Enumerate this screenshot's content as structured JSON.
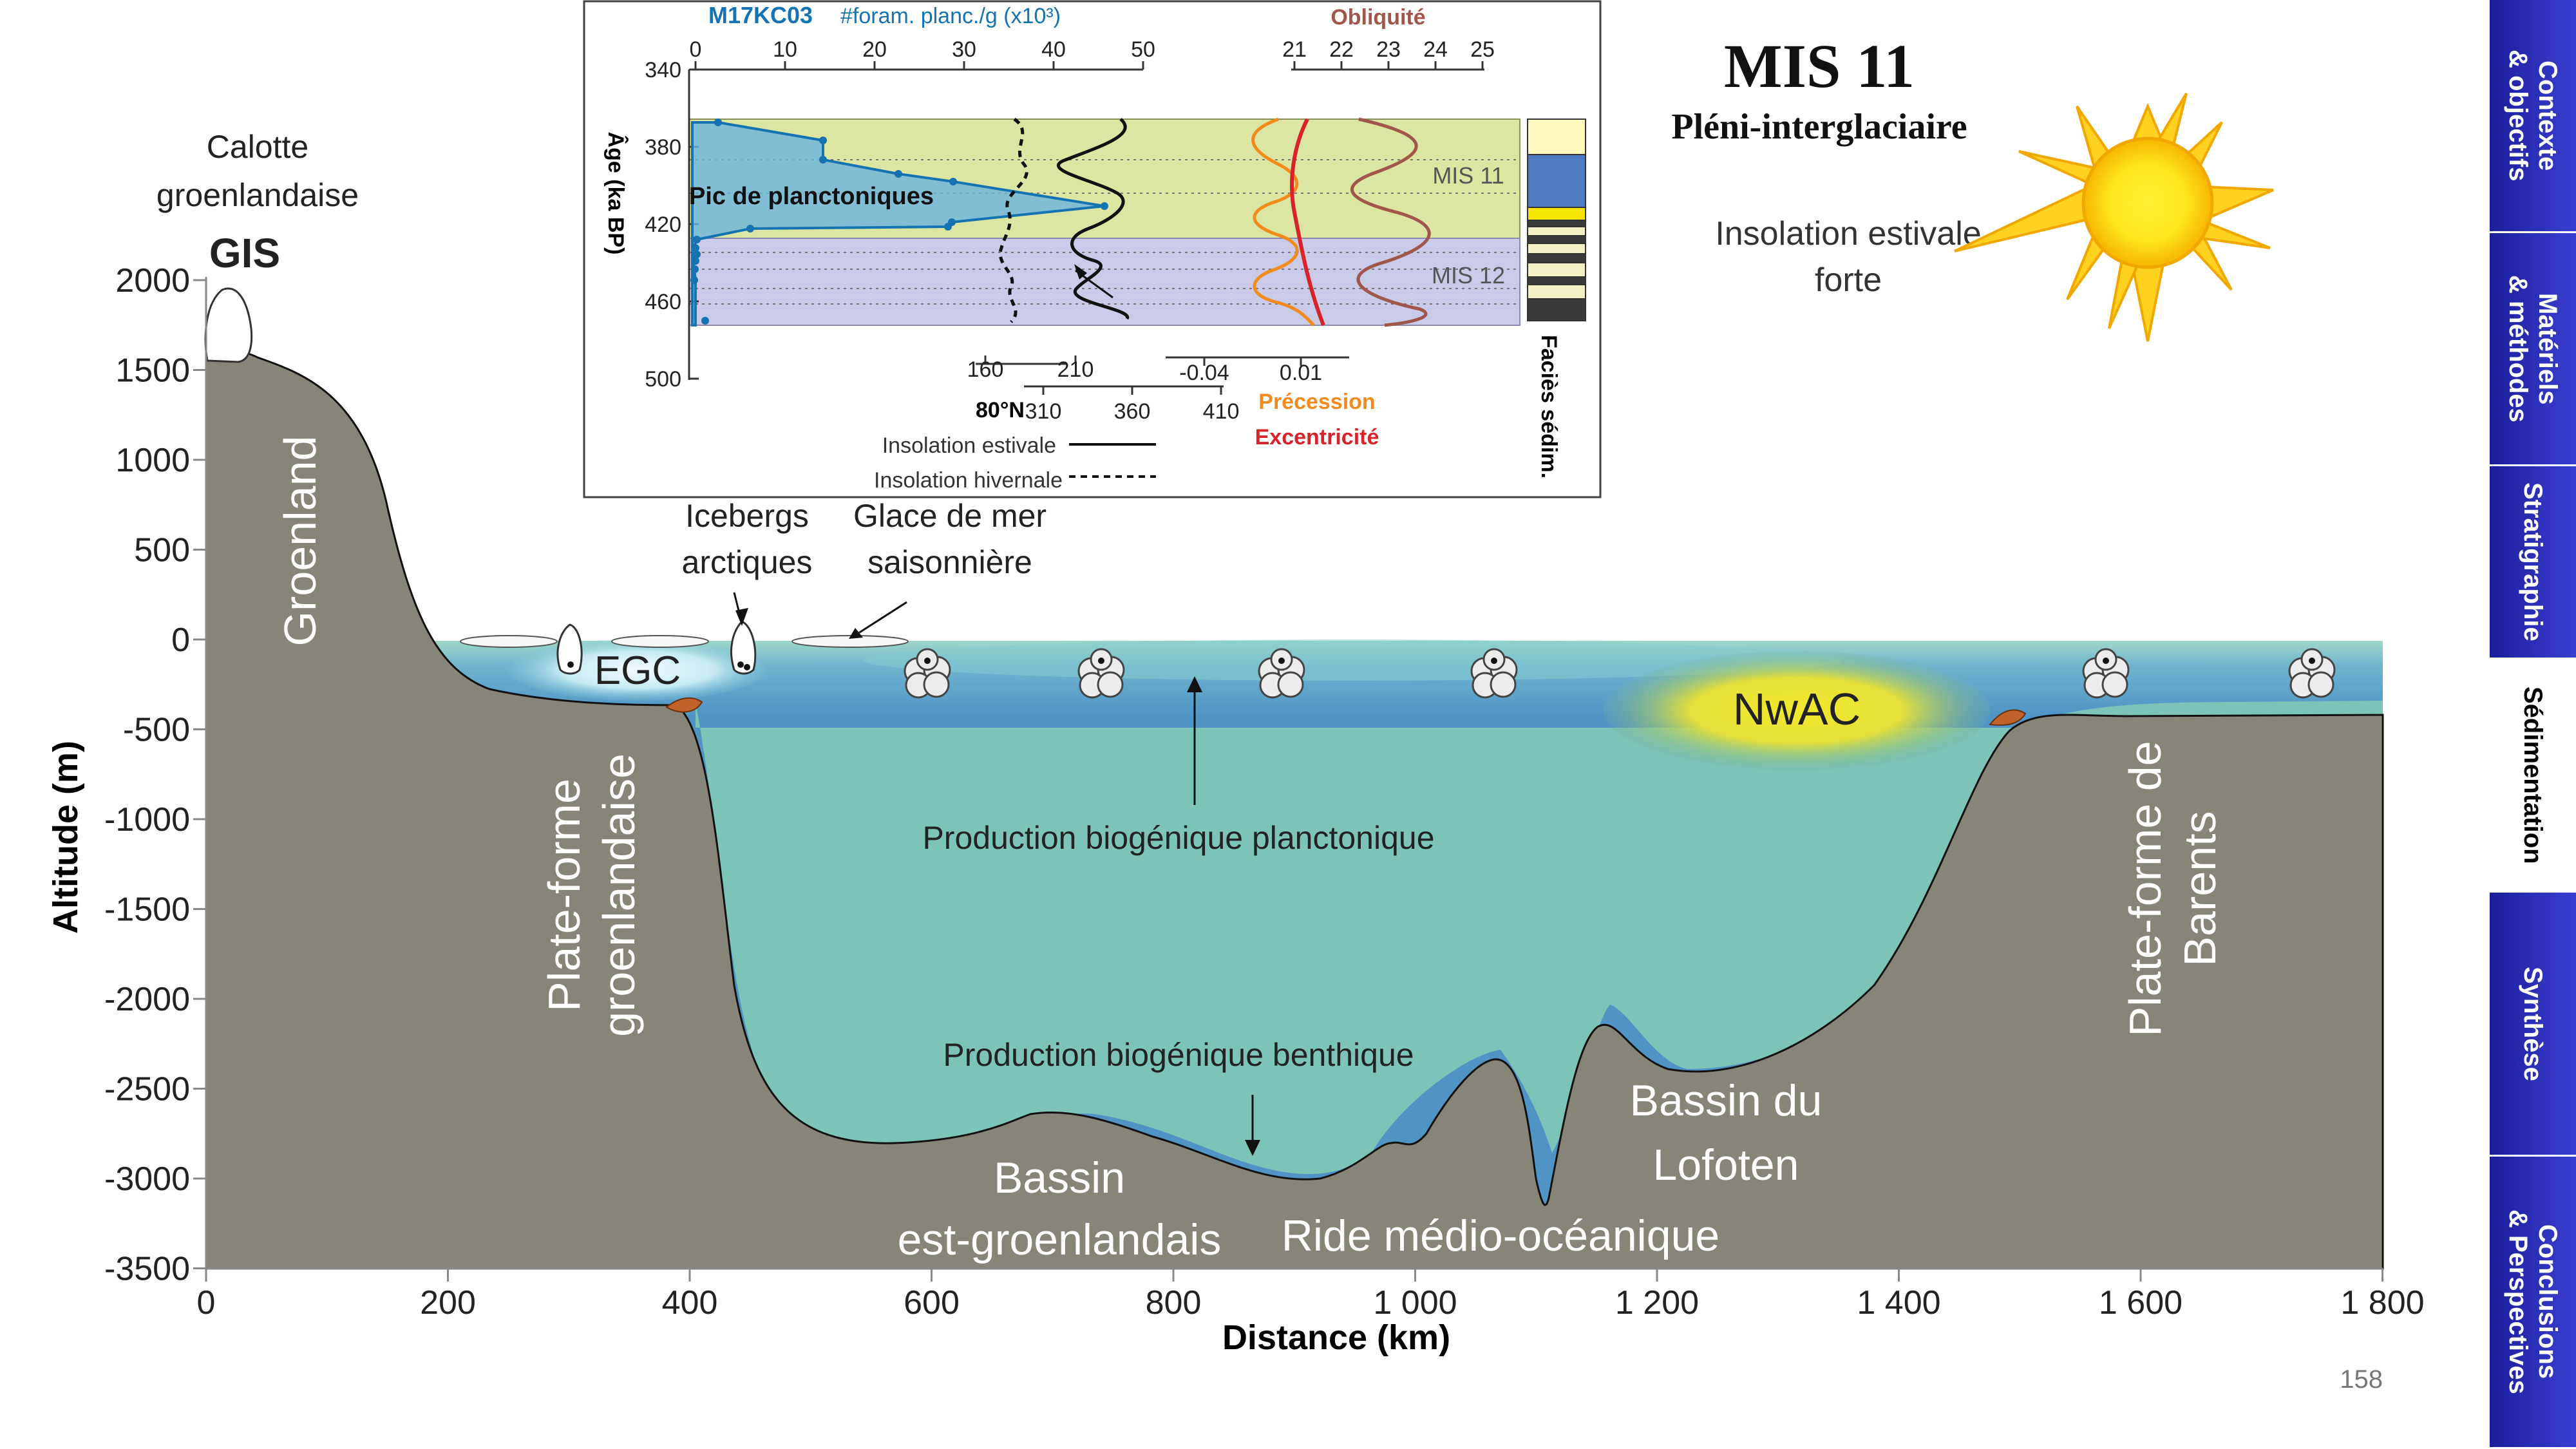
{
  "nav": {
    "items": [
      {
        "label": "Contexte\n& objectifs",
        "active": false
      },
      {
        "label": "Matériels\n& méthodes",
        "active": false
      },
      {
        "label": "Stratigraphie",
        "active": false
      },
      {
        "label": "Sédimentation",
        "active": true
      },
      {
        "label": "Synthèse",
        "active": false
      },
      {
        "label": "Conclusions\n& Perspectives",
        "active": false
      }
    ],
    "color_inactive": "#2a2cb5",
    "color_active": "#ffffff"
  },
  "header": {
    "title": "MIS 11",
    "subtitle": "Pléni-interglaciaire",
    "insolation_label_1": "Insolation estivale",
    "insolation_label_2": "forte",
    "sun_icon": "sun-icon"
  },
  "section": {
    "y_axis_label": "Altitude (m)",
    "x_axis_label": "Distance (km)",
    "y_ticks": [
      "2000",
      "1500",
      "1000",
      "500",
      "0",
      "-500",
      "-1000",
      "-1500",
      "-2000",
      "-2500",
      "-3000",
      "-3500"
    ],
    "x_ticks": [
      "0",
      "200",
      "400",
      "600",
      "800",
      "1 000",
      "1 200",
      "1 400",
      "1 600",
      "1 800"
    ],
    "labels": {
      "calotte_1": "Calotte",
      "calotte_2": "groenlandaise",
      "gis": "GIS",
      "groenland": "Groenland",
      "icebergs_1": "Icebergs",
      "icebergs_2": "arctiques",
      "glace_1": "Glace de mer",
      "glace_2": "saisonnière",
      "egc": "EGC",
      "nwac": "NwAC",
      "plateforme_groen_1": "Plate-forme",
      "plateforme_groen_2": "groenlandaise",
      "plateforme_barents_1": "Plate-forme de",
      "plateforme_barents_2": "Barents",
      "prod_planct": "Production biogénique planctonique",
      "prod_benth": "Production biogénique benthique",
      "bassin_eg_1": "Bassin",
      "bassin_eg_2": "est-groenlandais",
      "ride": "Ride médio-océanique",
      "lofoten_1": "Bassin du",
      "lofoten_2": "Lofoten"
    },
    "colors": {
      "land": "#878478",
      "ocean": "#4f94c5",
      "sediment": "#7cc3b8",
      "nwac": "#e9e234"
    }
  },
  "inset": {
    "core_label": "M17KC03",
    "foram_axis_label": "#foram. planc./g (x10³)",
    "foram_ticks": [
      "0",
      "10",
      "20",
      "30",
      "40",
      "50"
    ],
    "obliquity_label": "Obliquité",
    "obliquity_ticks": [
      "21",
      "22",
      "23",
      "24",
      "25"
    ],
    "age_axis_label": "Âge (ka BP)",
    "age_ticks": [
      "340",
      "380",
      "420",
      "460",
      "500"
    ],
    "pic_label": "Pic de planctoniques",
    "mis11_label": "MIS 11",
    "mis12_label": "MIS 12",
    "insol_hiver_ticks": [
      "160",
      "210"
    ],
    "insol_ete_ticks": [
      "310",
      "360",
      "410"
    ],
    "lat_label": "80°N",
    "precession_ticks": [
      "-0.04",
      "0.01"
    ],
    "precession_label": "Précession",
    "excentricite_label": "Excentricité",
    "legend_ete": "Insolation estivale",
    "legend_hiver": "Insolation hivernale",
    "facies_label": "Faciès sédim.",
    "colors": {
      "mis11": "#dbe6a2",
      "mis12": "#c9cbe8",
      "foram": "#1673b1",
      "precession": "#f28a1c",
      "excentricite": "#d8232a",
      "obliquite": "#a0564a"
    }
  },
  "page_number": "158"
}
